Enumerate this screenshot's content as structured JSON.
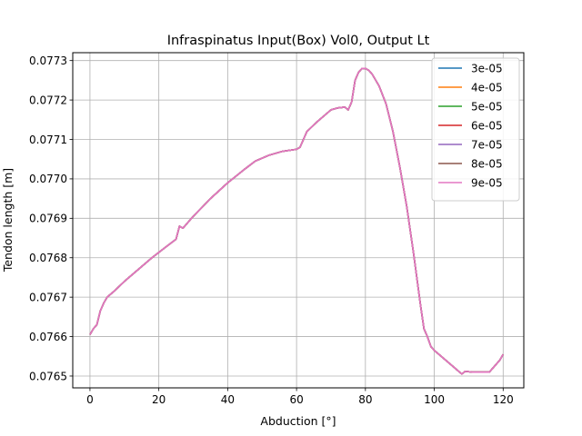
{
  "chart_data": {
    "type": "line",
    "title": "Infraspinatus Input(Box) Vol0, Output Lt",
    "xlabel": "Abduction [°]",
    "ylabel": "Tendon length [m]",
    "xlim": [
      -5,
      126
    ],
    "ylim": [
      0.07647,
      0.07732
    ],
    "xticks": [
      0,
      20,
      40,
      60,
      80,
      100,
      120
    ],
    "xtick_labels": [
      "0",
      "20",
      "40",
      "60",
      "80",
      "100",
      "120"
    ],
    "yticks": [
      0.0765,
      0.0766,
      0.0767,
      0.0768,
      0.0769,
      0.077,
      0.0771,
      0.0772,
      0.0773
    ],
    "ytick_labels": [
      "0.0765",
      "0.0766",
      "0.0767",
      "0.0768",
      "0.0769",
      "0.0770",
      "0.0771",
      "0.0772",
      "0.0773"
    ],
    "grid": true,
    "legend_position": "top-right",
    "x": [
      0,
      1,
      2,
      3,
      4,
      5,
      7,
      10,
      14,
      18,
      22,
      25,
      26,
      27,
      30,
      35,
      40,
      45,
      48,
      52,
      56,
      60,
      61,
      63,
      66,
      70,
      72,
      74,
      75,
      76,
      77,
      78,
      79,
      80,
      81,
      82,
      84,
      86,
      88,
      90,
      92,
      94,
      96,
      97,
      98,
      99,
      100,
      102,
      104,
      106,
      108,
      109,
      111,
      113,
      115,
      116,
      117,
      118,
      119,
      120
    ],
    "series": [
      {
        "name": "3e-05",
        "color": "#1f77b4",
        "values": [
          0.076605,
          0.07662,
          0.07663,
          0.076665,
          0.076685,
          0.0767,
          0.076715,
          0.07674,
          0.07677,
          0.0768,
          0.076827,
          0.076847,
          0.07688,
          0.076875,
          0.076905,
          0.07695,
          0.07699,
          0.077025,
          0.077045,
          0.07706,
          0.07707,
          0.077075,
          0.07708,
          0.07712,
          0.077145,
          0.077175,
          0.07718,
          0.077182,
          0.077175,
          0.077195,
          0.07725,
          0.07727,
          0.07728,
          0.07728,
          0.077275,
          0.077265,
          0.077235,
          0.07719,
          0.07712,
          0.07703,
          0.07693,
          0.07681,
          0.07668,
          0.07662,
          0.0766,
          0.076575,
          0.076565,
          0.07655,
          0.076535,
          0.07652,
          0.076505,
          0.076512,
          0.07651,
          0.07651,
          0.07651,
          0.07651,
          0.07652,
          0.07653,
          0.07654,
          0.076555
        ]
      },
      {
        "name": "4e-05",
        "color": "#ff7f0e",
        "values": [
          0.076605,
          0.07662,
          0.07663,
          0.076665,
          0.076685,
          0.0767,
          0.076715,
          0.07674,
          0.07677,
          0.0768,
          0.076827,
          0.076847,
          0.07688,
          0.076875,
          0.076905,
          0.07695,
          0.07699,
          0.077025,
          0.077045,
          0.07706,
          0.07707,
          0.077075,
          0.07708,
          0.07712,
          0.077145,
          0.077175,
          0.07718,
          0.077182,
          0.077175,
          0.077195,
          0.07725,
          0.07727,
          0.07728,
          0.07728,
          0.077275,
          0.077265,
          0.077235,
          0.07719,
          0.07712,
          0.07703,
          0.07693,
          0.07681,
          0.07668,
          0.07662,
          0.0766,
          0.076575,
          0.076565,
          0.07655,
          0.076535,
          0.07652,
          0.076505,
          0.076512,
          0.07651,
          0.07651,
          0.07651,
          0.07651,
          0.07652,
          0.07653,
          0.07654,
          0.076555
        ]
      },
      {
        "name": "5e-05",
        "color": "#2ca02c",
        "values": [
          0.076605,
          0.07662,
          0.07663,
          0.076665,
          0.076685,
          0.0767,
          0.076715,
          0.07674,
          0.07677,
          0.0768,
          0.076827,
          0.076847,
          0.07688,
          0.076875,
          0.076905,
          0.07695,
          0.07699,
          0.077025,
          0.077045,
          0.07706,
          0.07707,
          0.077075,
          0.07708,
          0.07712,
          0.077145,
          0.077175,
          0.07718,
          0.077182,
          0.077175,
          0.077195,
          0.07725,
          0.07727,
          0.07728,
          0.07728,
          0.077275,
          0.077265,
          0.077235,
          0.07719,
          0.07712,
          0.07703,
          0.07693,
          0.07681,
          0.07668,
          0.07662,
          0.0766,
          0.076575,
          0.076565,
          0.07655,
          0.076535,
          0.07652,
          0.076505,
          0.076512,
          0.07651,
          0.07651,
          0.07651,
          0.07651,
          0.07652,
          0.07653,
          0.07654,
          0.076555
        ]
      },
      {
        "name": "6e-05",
        "color": "#d62728",
        "values": [
          0.076605,
          0.07662,
          0.07663,
          0.076665,
          0.076685,
          0.0767,
          0.076715,
          0.07674,
          0.07677,
          0.0768,
          0.076827,
          0.076847,
          0.07688,
          0.076875,
          0.076905,
          0.07695,
          0.07699,
          0.077025,
          0.077045,
          0.07706,
          0.07707,
          0.077075,
          0.07708,
          0.07712,
          0.077145,
          0.077175,
          0.07718,
          0.077182,
          0.077175,
          0.077195,
          0.07725,
          0.07727,
          0.07728,
          0.07728,
          0.077275,
          0.077265,
          0.077235,
          0.07719,
          0.07712,
          0.07703,
          0.07693,
          0.07681,
          0.07668,
          0.07662,
          0.0766,
          0.076575,
          0.076565,
          0.07655,
          0.076535,
          0.07652,
          0.076505,
          0.076512,
          0.07651,
          0.07651,
          0.07651,
          0.07651,
          0.07652,
          0.07653,
          0.07654,
          0.076555
        ]
      },
      {
        "name": "7e-05",
        "color": "#9467bd",
        "values": [
          0.076605,
          0.07662,
          0.07663,
          0.076665,
          0.076685,
          0.0767,
          0.076715,
          0.07674,
          0.07677,
          0.0768,
          0.076827,
          0.076847,
          0.07688,
          0.076875,
          0.076905,
          0.07695,
          0.07699,
          0.077025,
          0.077045,
          0.07706,
          0.07707,
          0.077075,
          0.07708,
          0.07712,
          0.077145,
          0.077175,
          0.07718,
          0.077182,
          0.077175,
          0.077195,
          0.07725,
          0.07727,
          0.07728,
          0.07728,
          0.077275,
          0.077265,
          0.077235,
          0.07719,
          0.07712,
          0.07703,
          0.07693,
          0.07681,
          0.07668,
          0.07662,
          0.0766,
          0.076575,
          0.076565,
          0.07655,
          0.076535,
          0.07652,
          0.076505,
          0.076512,
          0.07651,
          0.07651,
          0.07651,
          0.07651,
          0.07652,
          0.07653,
          0.07654,
          0.076555
        ]
      },
      {
        "name": "8e-05",
        "color": "#8c564b",
        "values": [
          0.076605,
          0.07662,
          0.07663,
          0.076665,
          0.076685,
          0.0767,
          0.076715,
          0.07674,
          0.07677,
          0.0768,
          0.076827,
          0.076847,
          0.07688,
          0.076875,
          0.076905,
          0.07695,
          0.07699,
          0.077025,
          0.077045,
          0.07706,
          0.07707,
          0.077075,
          0.07708,
          0.07712,
          0.077145,
          0.077175,
          0.07718,
          0.077182,
          0.077175,
          0.077195,
          0.07725,
          0.07727,
          0.07728,
          0.07728,
          0.077275,
          0.077265,
          0.077235,
          0.07719,
          0.07712,
          0.07703,
          0.07693,
          0.07681,
          0.07668,
          0.07662,
          0.0766,
          0.076575,
          0.076565,
          0.07655,
          0.076535,
          0.07652,
          0.076505,
          0.076512,
          0.07651,
          0.07651,
          0.07651,
          0.07651,
          0.07652,
          0.07653,
          0.07654,
          0.076555
        ]
      },
      {
        "name": "9e-05",
        "color": "#e377c2",
        "values": [
          0.076605,
          0.07662,
          0.07663,
          0.076665,
          0.076685,
          0.0767,
          0.076715,
          0.07674,
          0.07677,
          0.0768,
          0.076827,
          0.076847,
          0.07688,
          0.076875,
          0.076905,
          0.07695,
          0.07699,
          0.077025,
          0.077045,
          0.07706,
          0.07707,
          0.077075,
          0.07708,
          0.07712,
          0.077145,
          0.077175,
          0.07718,
          0.077182,
          0.077175,
          0.077195,
          0.07725,
          0.07727,
          0.07728,
          0.07728,
          0.077275,
          0.077265,
          0.077235,
          0.07719,
          0.07712,
          0.07703,
          0.07693,
          0.07681,
          0.07668,
          0.07662,
          0.0766,
          0.076575,
          0.076565,
          0.07655,
          0.076535,
          0.07652,
          0.076505,
          0.076512,
          0.07651,
          0.07651,
          0.07651,
          0.07651,
          0.07652,
          0.07653,
          0.07654,
          0.076555
        ]
      }
    ]
  }
}
